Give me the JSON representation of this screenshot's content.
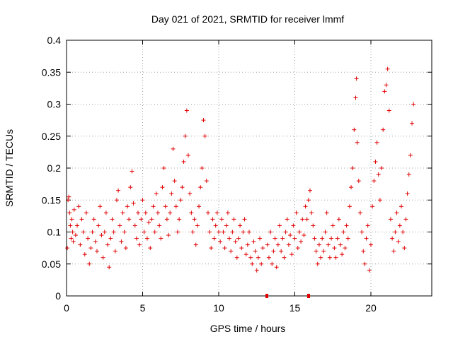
{
  "chart_data": {
    "type": "scatter",
    "title": "Day 021 of 2021, SRMTID for receiver lmmf",
    "xlabel": "GPS time / hours",
    "ylabel": "SRMTID / TECUs",
    "xlim": [
      0,
      24
    ],
    "ylim": [
      0,
      0.4
    ],
    "xticks": [
      0,
      5,
      10,
      15,
      20
    ],
    "xtick_labels": [
      "0",
      "5",
      "10",
      "15",
      "20"
    ],
    "yticks": [
      0,
      0.05,
      0.1,
      0.15,
      0.2,
      0.25,
      0.3,
      0.35,
      0.4
    ],
    "ytick_labels": [
      "0",
      "0.05",
      "0.1",
      "0.15",
      "0.2",
      "0.25",
      "0.3",
      "0.35",
      "0.4"
    ],
    "grid": true,
    "marker": "plus",
    "series_color": "#e00000",
    "series": [
      {
        "name": "SRMTID",
        "points": [
          [
            0.05,
            0.075
          ],
          [
            0.1,
            0.15
          ],
          [
            0.15,
            0.155
          ],
          [
            0.2,
            0.13
          ],
          [
            0.25,
            0.11
          ],
          [
            0.3,
            0.09
          ],
          [
            0.35,
            0.12
          ],
          [
            0.4,
            0.1
          ],
          [
            0.45,
            0.085
          ],
          [
            0.5,
            0.135
          ],
          [
            0.6,
            0.095
          ],
          [
            0.7,
            0.11
          ],
          [
            0.8,
            0.14
          ],
          [
            0.9,
            0.08
          ],
          [
            1.0,
            0.12
          ],
          [
            1.1,
            0.1
          ],
          [
            1.2,
            0.065
          ],
          [
            1.3,
            0.13
          ],
          [
            1.4,
            0.09
          ],
          [
            1.5,
            0.05
          ],
          [
            1.6,
            0.075
          ],
          [
            1.7,
            0.1
          ],
          [
            1.8,
            0.12
          ],
          [
            1.9,
            0.085
          ],
          [
            2.0,
            0.07
          ],
          [
            2.1,
            0.11
          ],
          [
            2.2,
            0.14
          ],
          [
            2.3,
            0.095
          ],
          [
            2.4,
            0.06
          ],
          [
            2.5,
            0.1
          ],
          [
            2.6,
            0.13
          ],
          [
            2.7,
            0.08
          ],
          [
            2.8,
            0.045
          ],
          [
            2.9,
            0.09
          ],
          [
            3.0,
            0.12
          ],
          [
            3.1,
            0.1
          ],
          [
            3.2,
            0.07
          ],
          [
            3.3,
            0.15
          ],
          [
            3.4,
            0.165
          ],
          [
            3.5,
            0.11
          ],
          [
            3.6,
            0.085
          ],
          [
            3.7,
            0.13
          ],
          [
            3.8,
            0.1
          ],
          [
            3.9,
            0.075
          ],
          [
            4.0,
            0.14
          ],
          [
            4.1,
            0.12
          ],
          [
            4.2,
            0.17
          ],
          [
            4.3,
            0.195
          ],
          [
            4.4,
            0.145
          ],
          [
            4.5,
            0.11
          ],
          [
            4.6,
            0.09
          ],
          [
            4.7,
            0.13
          ],
          [
            4.8,
            0.08
          ],
          [
            4.9,
            0.12
          ],
          [
            5.0,
            0.15
          ],
          [
            5.1,
            0.1
          ],
          [
            5.2,
            0.13
          ],
          [
            5.3,
            0.09
          ],
          [
            5.4,
            0.115
          ],
          [
            5.5,
            0.075
          ],
          [
            5.6,
            0.12
          ],
          [
            5.7,
            0.14
          ],
          [
            5.8,
            0.1
          ],
          [
            5.9,
            0.16
          ],
          [
            6.0,
            0.13
          ],
          [
            6.1,
            0.11
          ],
          [
            6.2,
            0.09
          ],
          [
            6.3,
            0.17
          ],
          [
            6.4,
            0.2
          ],
          [
            6.5,
            0.14
          ],
          [
            6.6,
            0.12
          ],
          [
            6.7,
            0.095
          ],
          [
            6.8,
            0.13
          ],
          [
            6.9,
            0.16
          ],
          [
            7.0,
            0.23
          ],
          [
            7.1,
            0.18
          ],
          [
            7.2,
            0.14
          ],
          [
            7.3,
            0.1
          ],
          [
            7.4,
            0.12
          ],
          [
            7.5,
            0.15
          ],
          [
            7.6,
            0.17
          ],
          [
            7.7,
            0.21
          ],
          [
            7.8,
            0.25
          ],
          [
            7.9,
            0.29
          ],
          [
            8.0,
            0.22
          ],
          [
            8.1,
            0.16
          ],
          [
            8.2,
            0.13
          ],
          [
            8.3,
            0.1
          ],
          [
            8.4,
            0.12
          ],
          [
            8.5,
            0.08
          ],
          [
            8.6,
            0.11
          ],
          [
            8.7,
            0.14
          ],
          [
            8.8,
            0.17
          ],
          [
            8.9,
            0.2
          ],
          [
            9.0,
            0.275
          ],
          [
            9.1,
            0.25
          ],
          [
            9.2,
            0.18
          ],
          [
            9.3,
            0.13
          ],
          [
            9.4,
            0.1
          ],
          [
            9.5,
            0.075
          ],
          [
            9.6,
            0.12
          ],
          [
            9.7,
            0.09
          ],
          [
            9.8,
            0.11
          ],
          [
            9.9,
            0.13
          ],
          [
            10.0,
            0.1
          ],
          [
            10.1,
            0.085
          ],
          [
            10.2,
            0.12
          ],
          [
            10.3,
            0.1
          ],
          [
            10.4,
            0.075
          ],
          [
            10.5,
            0.11
          ],
          [
            10.6,
            0.13
          ],
          [
            10.7,
            0.09
          ],
          [
            10.8,
            0.07
          ],
          [
            10.9,
            0.1
          ],
          [
            11.0,
            0.12
          ],
          [
            11.1,
            0.085
          ],
          [
            11.2,
            0.06
          ],
          [
            11.3,
            0.09
          ],
          [
            11.4,
            0.11
          ],
          [
            11.5,
            0.075
          ],
          [
            11.6,
            0.1
          ],
          [
            11.7,
            0.12
          ],
          [
            11.8,
            0.065
          ],
          [
            11.9,
            0.08
          ],
          [
            12.0,
            0.1
          ],
          [
            12.1,
            0.06
          ],
          [
            12.2,
            0.05
          ],
          [
            12.3,
            0.085
          ],
          [
            12.4,
            0.07
          ],
          [
            12.5,
            0.04
          ],
          [
            12.6,
            0.06
          ],
          [
            12.7,
            0.09
          ],
          [
            12.8,
            0.05
          ],
          [
            12.9,
            0.075
          ],
          [
            13.2,
            0.08
          ],
          [
            13.3,
            0.06
          ],
          [
            13.4,
            0.1
          ],
          [
            13.5,
            0.05
          ],
          [
            13.6,
            0.07
          ],
          [
            13.7,
            0.09
          ],
          [
            13.8,
            0.045
          ],
          [
            13.9,
            0.08
          ],
          [
            14.0,
            0.11
          ],
          [
            14.1,
            0.07
          ],
          [
            14.2,
            0.09
          ],
          [
            14.3,
            0.06
          ],
          [
            14.4,
            0.1
          ],
          [
            14.5,
            0.12
          ],
          [
            14.6,
            0.08
          ],
          [
            14.7,
            0.095
          ],
          [
            14.8,
            0.065
          ],
          [
            14.9,
            0.11
          ],
          [
            15.0,
            0.09
          ],
          [
            15.1,
            0.13
          ],
          [
            15.2,
            0.075
          ],
          [
            15.3,
            0.1
          ],
          [
            15.4,
            0.085
          ],
          [
            15.5,
            0.12
          ],
          [
            15.6,
            0.095
          ],
          [
            15.7,
            0.14
          ],
          [
            15.8,
            0.12
          ],
          [
            15.9,
            0.15
          ],
          [
            16.0,
            0.165
          ],
          [
            16.1,
            0.13
          ],
          [
            16.2,
            0.11
          ],
          [
            16.3,
            0.09
          ],
          [
            16.4,
            0.07
          ],
          [
            16.5,
            0.05
          ],
          [
            16.6,
            0.08
          ],
          [
            16.7,
            0.06
          ],
          [
            16.8,
            0.09
          ],
          [
            16.9,
            0.07
          ],
          [
            17.0,
            0.1
          ],
          [
            17.1,
            0.13
          ],
          [
            17.2,
            0.08
          ],
          [
            17.3,
            0.06
          ],
          [
            17.4,
            0.09
          ],
          [
            17.5,
            0.11
          ],
          [
            17.6,
            0.075
          ],
          [
            17.7,
            0.06
          ],
          [
            17.8,
            0.09
          ],
          [
            17.9,
            0.12
          ],
          [
            18.0,
            0.08
          ],
          [
            18.1,
            0.065
          ],
          [
            18.2,
            0.1
          ],
          [
            18.3,
            0.075
          ],
          [
            18.4,
            0.11
          ],
          [
            18.5,
            0.09
          ],
          [
            18.6,
            0.14
          ],
          [
            18.7,
            0.17
          ],
          [
            18.8,
            0.2
          ],
          [
            18.9,
            0.26
          ],
          [
            19.0,
            0.31
          ],
          [
            19.05,
            0.34
          ],
          [
            19.1,
            0.24
          ],
          [
            19.2,
            0.18
          ],
          [
            19.3,
            0.13
          ],
          [
            19.4,
            0.1
          ],
          [
            19.5,
            0.07
          ],
          [
            19.6,
            0.05
          ],
          [
            19.7,
            0.09
          ],
          [
            19.8,
            0.11
          ],
          [
            19.9,
            0.04
          ],
          [
            20.0,
            0.08
          ],
          [
            20.1,
            0.14
          ],
          [
            20.2,
            0.18
          ],
          [
            20.3,
            0.21
          ],
          [
            20.4,
            0.24
          ],
          [
            20.5,
            0.19
          ],
          [
            20.6,
            0.15
          ],
          [
            20.7,
            0.2
          ],
          [
            20.8,
            0.26
          ],
          [
            20.9,
            0.32
          ],
          [
            21.0,
            0.33
          ],
          [
            21.1,
            0.355
          ],
          [
            21.2,
            0.29
          ],
          [
            21.3,
            0.12
          ],
          [
            21.4,
            0.09
          ],
          [
            21.5,
            0.07
          ],
          [
            21.6,
            0.1
          ],
          [
            21.7,
            0.13
          ],
          [
            21.8,
            0.085
          ],
          [
            21.9,
            0.11
          ],
          [
            22.0,
            0.14
          ],
          [
            22.1,
            0.1
          ],
          [
            22.2,
            0.075
          ],
          [
            22.3,
            0.12
          ],
          [
            22.4,
            0.16
          ],
          [
            22.5,
            0.19
          ],
          [
            22.6,
            0.22
          ],
          [
            22.7,
            0.27
          ],
          [
            22.8,
            0.3
          ]
        ]
      }
    ]
  }
}
